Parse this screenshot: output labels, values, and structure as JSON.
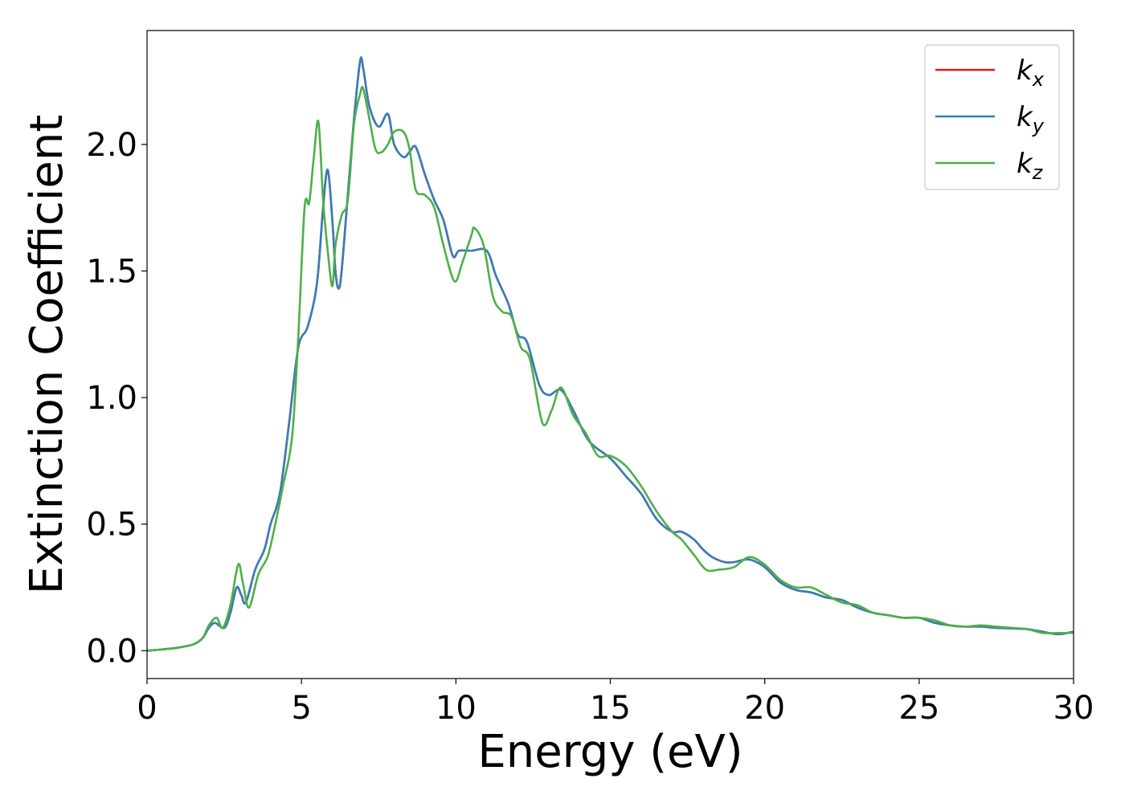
{
  "chart_data": {
    "type": "line",
    "xlabel": "Energy (eV)",
    "ylabel": "Extinction Coefficient",
    "xlim": [
      0,
      30
    ],
    "ylim": [
      -0.11,
      2.45
    ],
    "xticks": [
      0,
      5,
      10,
      15,
      20,
      25,
      30
    ],
    "xtick_labels": [
      "0",
      "5",
      "10",
      "15",
      "20",
      "25",
      "30"
    ],
    "yticks": [
      0.0,
      0.5,
      1.0,
      1.5,
      2.0
    ],
    "ytick_labels": [
      "0.0",
      "0.5",
      "1.0",
      "1.5",
      "2.0"
    ],
    "grid": false,
    "legend": "top-right",
    "series": [
      {
        "name": "k",
        "subscript": "x",
        "color": "#e41a1c",
        "x": [
          0,
          0.5,
          1,
          1.5,
          1.8,
          2,
          2.2,
          2.5,
          2.7,
          2.9,
          3.05,
          3.2,
          3.5,
          3.8,
          4,
          4.3,
          4.6,
          4.9,
          5.2,
          5.5,
          5.7,
          5.85,
          6,
          6.1,
          6.2,
          6.3,
          6.5,
          6.7,
          6.9,
          7,
          7.2,
          7.5,
          7.8,
          8,
          8.3,
          8.5,
          8.7,
          9,
          9.3,
          9.6,
          9.9,
          10.1,
          10.5,
          11,
          11.3,
          11.7,
          12,
          12.3,
          12.7,
          13,
          13.4,
          13.8,
          14.3,
          15,
          15.5,
          16,
          16.5,
          17,
          17.3,
          17.7,
          18,
          18.3,
          18.7,
          19,
          19.5,
          20,
          20.5,
          21,
          21.5,
          22,
          22.5,
          23,
          23.5,
          24,
          24.5,
          25,
          25.5,
          26,
          26.5,
          27,
          27.5,
          28,
          28.5,
          29,
          29.5,
          30
        ],
        "y": [
          0,
          0.005,
          0.012,
          0.025,
          0.05,
          0.09,
          0.11,
          0.09,
          0.15,
          0.25,
          0.22,
          0.19,
          0.32,
          0.4,
          0.5,
          0.62,
          0.9,
          1.2,
          1.28,
          1.45,
          1.75,
          1.9,
          1.7,
          1.5,
          1.43,
          1.5,
          1.8,
          2.1,
          2.33,
          2.3,
          2.15,
          2.07,
          2.12,
          2.0,
          1.95,
          1.97,
          1.99,
          1.88,
          1.78,
          1.7,
          1.56,
          1.58,
          1.58,
          1.58,
          1.48,
          1.37,
          1.25,
          1.22,
          1.05,
          1.01,
          1.03,
          0.95,
          0.83,
          0.76,
          0.69,
          0.62,
          0.52,
          0.47,
          0.47,
          0.44,
          0.4,
          0.37,
          0.35,
          0.35,
          0.36,
          0.33,
          0.27,
          0.24,
          0.23,
          0.21,
          0.2,
          0.17,
          0.15,
          0.14,
          0.13,
          0.13,
          0.11,
          0.1,
          0.095,
          0.095,
          0.09,
          0.088,
          0.085,
          0.075,
          0.065,
          0.075
        ]
      },
      {
        "name": "k",
        "subscript": "y",
        "color": "#377eb8",
        "x": [
          0,
          0.5,
          1,
          1.5,
          1.8,
          2,
          2.2,
          2.5,
          2.7,
          2.9,
          3.05,
          3.2,
          3.5,
          3.8,
          4,
          4.3,
          4.6,
          4.9,
          5.2,
          5.5,
          5.7,
          5.85,
          6,
          6.1,
          6.2,
          6.3,
          6.5,
          6.7,
          6.9,
          7,
          7.2,
          7.5,
          7.8,
          8,
          8.3,
          8.5,
          8.7,
          9,
          9.3,
          9.6,
          9.9,
          10.1,
          10.5,
          11,
          11.3,
          11.7,
          12,
          12.3,
          12.7,
          13,
          13.4,
          13.8,
          14.3,
          15,
          15.5,
          16,
          16.5,
          17,
          17.3,
          17.7,
          18,
          18.3,
          18.7,
          19,
          19.5,
          20,
          20.5,
          21,
          21.5,
          22,
          22.5,
          23,
          23.5,
          24,
          24.5,
          25,
          25.5,
          26,
          26.5,
          27,
          27.5,
          28,
          28.5,
          29,
          29.5,
          30
        ],
        "y": [
          0,
          0.005,
          0.012,
          0.025,
          0.05,
          0.09,
          0.11,
          0.09,
          0.15,
          0.25,
          0.22,
          0.19,
          0.32,
          0.4,
          0.5,
          0.62,
          0.9,
          1.2,
          1.28,
          1.45,
          1.75,
          1.9,
          1.7,
          1.5,
          1.43,
          1.5,
          1.8,
          2.1,
          2.33,
          2.3,
          2.15,
          2.07,
          2.12,
          2.0,
          1.95,
          1.97,
          1.99,
          1.88,
          1.78,
          1.7,
          1.56,
          1.58,
          1.58,
          1.58,
          1.48,
          1.37,
          1.25,
          1.22,
          1.05,
          1.01,
          1.03,
          0.95,
          0.83,
          0.76,
          0.69,
          0.62,
          0.52,
          0.47,
          0.47,
          0.44,
          0.4,
          0.37,
          0.35,
          0.35,
          0.36,
          0.33,
          0.27,
          0.24,
          0.23,
          0.21,
          0.2,
          0.17,
          0.15,
          0.14,
          0.13,
          0.13,
          0.11,
          0.1,
          0.095,
          0.095,
          0.09,
          0.088,
          0.085,
          0.075,
          0.065,
          0.075
        ]
      },
      {
        "name": "k",
        "subscript": "z",
        "color": "#4daf4a",
        "x": [
          0,
          0.5,
          1,
          1.5,
          1.8,
          2,
          2.25,
          2.45,
          2.7,
          2.95,
          3.1,
          3.3,
          3.6,
          3.9,
          4.1,
          4.4,
          4.7,
          4.9,
          5.1,
          5.25,
          5.4,
          5.55,
          5.7,
          5.85,
          6,
          6.1,
          6.3,
          6.5,
          6.7,
          6.9,
          7,
          7.2,
          7.4,
          7.6,
          7.8,
          8,
          8.3,
          8.5,
          8.7,
          9,
          9.3,
          9.6,
          9.95,
          10.2,
          10.5,
          10.6,
          10.9,
          11.2,
          11.5,
          11.8,
          12.1,
          12.4,
          12.8,
          13.1,
          13.4,
          13.8,
          14.2,
          14.6,
          15,
          15.5,
          16,
          16.5,
          17,
          17.3,
          17.7,
          18.1,
          18.5,
          19,
          19.5,
          20,
          20.5,
          21,
          21.5,
          22,
          22.5,
          23,
          23.5,
          24,
          24.5,
          25,
          25.5,
          26,
          26.5,
          27,
          27.5,
          28,
          28.5,
          29,
          29.5,
          30
        ],
        "y": [
          0,
          0.005,
          0.012,
          0.025,
          0.05,
          0.1,
          0.13,
          0.09,
          0.18,
          0.34,
          0.27,
          0.17,
          0.3,
          0.37,
          0.47,
          0.65,
          0.85,
          1.25,
          1.75,
          1.77,
          1.95,
          2.09,
          1.78,
          1.58,
          1.44,
          1.6,
          1.72,
          1.78,
          2.08,
          2.2,
          2.22,
          2.1,
          1.98,
          1.97,
          2.0,
          2.05,
          2.05,
          1.98,
          1.82,
          1.8,
          1.75,
          1.6,
          1.46,
          1.53,
          1.64,
          1.67,
          1.6,
          1.4,
          1.34,
          1.32,
          1.2,
          1.15,
          0.9,
          0.95,
          1.04,
          0.93,
          0.86,
          0.77,
          0.77,
          0.73,
          0.65,
          0.55,
          0.47,
          0.44,
          0.38,
          0.32,
          0.32,
          0.33,
          0.37,
          0.34,
          0.28,
          0.25,
          0.25,
          0.22,
          0.19,
          0.18,
          0.15,
          0.14,
          0.13,
          0.13,
          0.12,
          0.1,
          0.095,
          0.1,
          0.095,
          0.09,
          0.085,
          0.07,
          0.07,
          0.07
        ]
      }
    ]
  }
}
